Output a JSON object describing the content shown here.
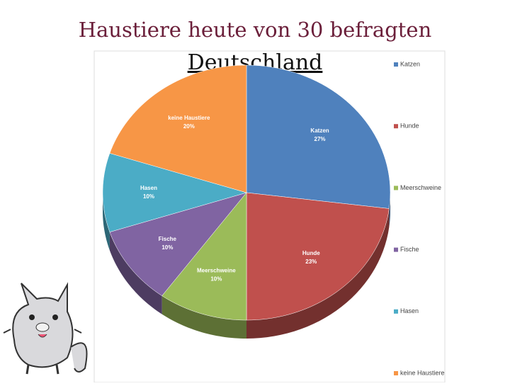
{
  "chart_data": {
    "type": "pie",
    "title": "Haustiere heute von 30 befragten",
    "subtitle": "Deutschland",
    "categories": [
      "Katzen",
      "Hunde",
      "Meerschweine",
      "Fische",
      "Hasen",
      "keine Haustiere"
    ],
    "values": [
      27,
      23,
      10,
      10,
      10,
      20
    ],
    "value_labels": [
      "27%",
      "23%",
      "10%",
      "10%",
      "10%",
      "20%"
    ],
    "colors": [
      "#4f81bd",
      "#c0504d",
      "#9bbb59",
      "#8064a2",
      "#4bacc6",
      "#f79646"
    ],
    "legend": "right"
  }
}
